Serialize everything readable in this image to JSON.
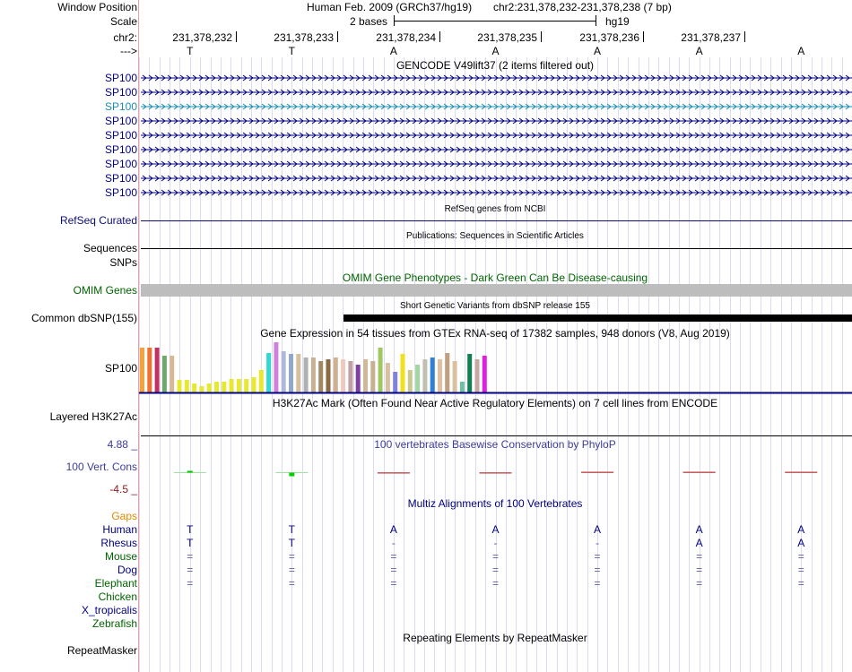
{
  "header": {
    "window_position_label": "Window Position",
    "scale_label": "Scale",
    "chrom_label": "chr2:",
    "strand_label": "--->",
    "assembly_text": "Human Feb. 2009 (GRCh37/hg19)",
    "position_text": "chr2:231,378,232-231,378,238 (7 bp)",
    "scale_text": "2 bases",
    "db_text": "hg19",
    "positions": [
      "231,378,232",
      "231,378,233",
      "231,378,234",
      "231,378,235",
      "231,378,236",
      "231,378,237"
    ],
    "bases": [
      "T",
      "T",
      "A",
      "A",
      "A",
      "A",
      "A"
    ]
  },
  "gencode": {
    "title": "GENCODE V49lift37 (2 items filtered out)",
    "rows": [
      {
        "label": "SP100",
        "color": "#000080"
      },
      {
        "label": "SP100",
        "color": "#000080"
      },
      {
        "label": "SP100",
        "color": "#1a8cb3"
      },
      {
        "label": "SP100",
        "color": "#000080"
      },
      {
        "label": "SP100",
        "color": "#000080"
      },
      {
        "label": "SP100",
        "color": "#000080"
      },
      {
        "label": "SP100",
        "color": "#000080"
      },
      {
        "label": "SP100",
        "color": "#000080"
      },
      {
        "label": "SP100",
        "color": "#000080"
      }
    ]
  },
  "refseq": {
    "title": "RefSeq genes from NCBI",
    "label": "RefSeq Curated",
    "color": "#0c0c78"
  },
  "publications": {
    "title": "Publications: Sequences in Scientific Articles",
    "label": "Sequences"
  },
  "snps": {
    "label": "SNPs"
  },
  "omim": {
    "title": "OMIM Gene Phenotypes - Dark Green Can Be Disease-causing",
    "label": "OMIM Genes",
    "color": "#006400"
  },
  "dbsnp": {
    "title": "Short Genetic Variants from dbSNP release 155",
    "label": "Common dbSNP(155)"
  },
  "gtex": {
    "title": "Gene Expression in 54 tissues from GTEx RNA-seq of 17382 samples, 948 donors (V8, Aug 2019)",
    "label": "SP100",
    "bars": [
      {
        "c": "#f7a13a",
        "v": 0.52
      },
      {
        "c": "#f07030",
        "v": 0.52
      },
      {
        "c": "#c03060",
        "v": 0.52
      },
      {
        "c": "#6fa96a",
        "v": 0.42
      },
      {
        "c": "#d6b896",
        "v": 0.42
      },
      {
        "c": "#e8e830",
        "v": 0.14
      },
      {
        "c": "#e8e830",
        "v": 0.14
      },
      {
        "c": "#e8e830",
        "v": 0.1
      },
      {
        "c": "#e8e830",
        "v": 0.07
      },
      {
        "c": "#e8e830",
        "v": 0.1
      },
      {
        "c": "#e8e830",
        "v": 0.12
      },
      {
        "c": "#e8e830",
        "v": 0.12
      },
      {
        "c": "#e8e830",
        "v": 0.16
      },
      {
        "c": "#e8e830",
        "v": 0.16
      },
      {
        "c": "#e8e830",
        "v": 0.16
      },
      {
        "c": "#e8e830",
        "v": 0.18
      },
      {
        "c": "#e8e830",
        "v": 0.26
      },
      {
        "c": "#30d8d0",
        "v": 0.46
      },
      {
        "c": "#d080e0",
        "v": 0.58
      },
      {
        "c": "#b0b8d8",
        "v": 0.48
      },
      {
        "c": "#90a8d0",
        "v": 0.44
      },
      {
        "c": "#d6c0a0",
        "v": 0.44
      },
      {
        "c": "#b0b0b0",
        "v": 0.4
      },
      {
        "c": "#c8b090",
        "v": 0.4
      },
      {
        "c": "#a08860",
        "v": 0.36
      },
      {
        "c": "#8a6a40",
        "v": 0.38
      },
      {
        "c": "#d0b090",
        "v": 0.4
      },
      {
        "c": "#f0c8c0",
        "v": 0.38
      },
      {
        "c": "#c0a0a0",
        "v": 0.36
      },
      {
        "c": "#8040a0",
        "v": 0.32
      },
      {
        "c": "#d0b898",
        "v": 0.38
      },
      {
        "c": "#c8b090",
        "v": 0.36
      },
      {
        "c": "#a0c860",
        "v": 0.52
      },
      {
        "c": "#d8c0a0",
        "v": 0.34
      },
      {
        "c": "#8080e0",
        "v": 0.24
      },
      {
        "c": "#f0e020",
        "v": 0.44
      },
      {
        "c": "#c8c890",
        "v": 0.26
      },
      {
        "c": "#a0d8a0",
        "v": 0.32
      },
      {
        "c": "#c0c0b0",
        "v": 0.38
      },
      {
        "c": "#3080d8",
        "v": 0.4
      },
      {
        "c": "#e0c0a0",
        "v": 0.38
      },
      {
        "c": "#c0a080",
        "v": 0.46
      },
      {
        "c": "#d8c0a0",
        "v": 0.36
      },
      {
        "c": "#70c0a0",
        "v": 0.12
      },
      {
        "c": "#108050",
        "v": 0.44
      },
      {
        "c": "#c8a8a0",
        "v": 0.38
      },
      {
        "c": "#e020e0",
        "v": 0.42
      }
    ]
  },
  "h3k27ac": {
    "title": "H3K27Ac Mark (Often Found Near Active Regulatory Elements) on 7 cell lines from ENCODE",
    "label": "Layered H3K27Ac"
  },
  "phylop": {
    "title": "100 vertebrates Basewise Conservation by PhyloP",
    "label": "100 Vert. Cons",
    "max_label": "4.88 _",
    "min_label": "-4.5 _",
    "values": [
      0.35,
      -0.65,
      -0.15,
      -0.1,
      0.05,
      0.1,
      0.08
    ]
  },
  "multiz": {
    "title": "Multiz Alignments of 100 Vertebrates",
    "gaps_label": "Gaps",
    "species": [
      {
        "name": "Human",
        "color": "#000080",
        "bases": [
          "T",
          "T",
          "A",
          "A",
          "A",
          "A",
          "A"
        ]
      },
      {
        "name": "Rhesus",
        "color": "#000080",
        "bases": [
          "T",
          "T",
          "-",
          "-",
          "-",
          "A",
          "A"
        ]
      },
      {
        "name": "Mouse",
        "color": "#006400",
        "bases": [
          "=",
          "=",
          "=",
          "=",
          "=",
          "=",
          "="
        ]
      },
      {
        "name": "Dog",
        "color": "#000080",
        "bases": [
          "=",
          "=",
          "=",
          "=",
          "=",
          "=",
          "="
        ]
      },
      {
        "name": "Elephant",
        "color": "#006400",
        "bases": [
          "=",
          "=",
          "=",
          "=",
          "=",
          "=",
          "="
        ]
      },
      {
        "name": "Chicken",
        "color": "#006400",
        "bases": []
      },
      {
        "name": "X_tropicalis",
        "color": "#000080",
        "bases": []
      },
      {
        "name": "Zebrafish",
        "color": "#006400",
        "bases": []
      }
    ]
  },
  "repeatmasker": {
    "title": "Repeating Elements by RepeatMasker",
    "label": "RepeatMasker"
  }
}
